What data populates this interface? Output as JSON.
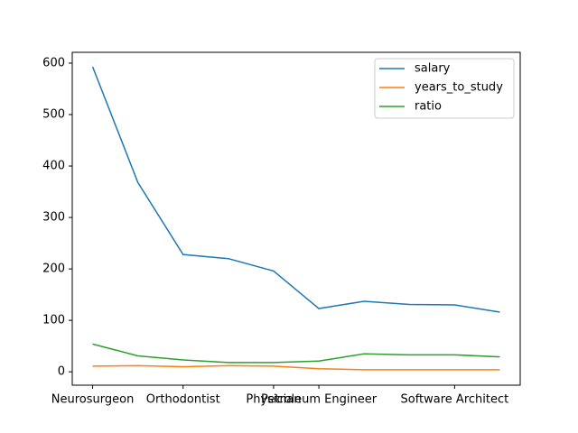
{
  "chart_data": {
    "type": "line",
    "categories": [
      "Neurosurgeon",
      null,
      "Orthodontist",
      null,
      "Physician",
      "Petroleum Engineer",
      null,
      null,
      "Software Architect",
      null
    ],
    "series": [
      {
        "name": "salary",
        "color": "#1f77b4",
        "values": [
          593,
          368,
          228,
          220,
          196,
          123,
          137,
          131,
          130,
          116
        ]
      },
      {
        "name": "years_to_study",
        "color": "#ff7f0e",
        "values": [
          11,
          12,
          10,
          12,
          11,
          6,
          4,
          4,
          4,
          4
        ]
      },
      {
        "name": "ratio",
        "color": "#2ca02c",
        "values": [
          54,
          31,
          23,
          18,
          18,
          21,
          35,
          33,
          33,
          29
        ]
      }
    ],
    "ylim": [
      -26,
      621
    ],
    "yticks": [
      0,
      100,
      200,
      300,
      400,
      500,
      600
    ],
    "legend": "upper right"
  }
}
